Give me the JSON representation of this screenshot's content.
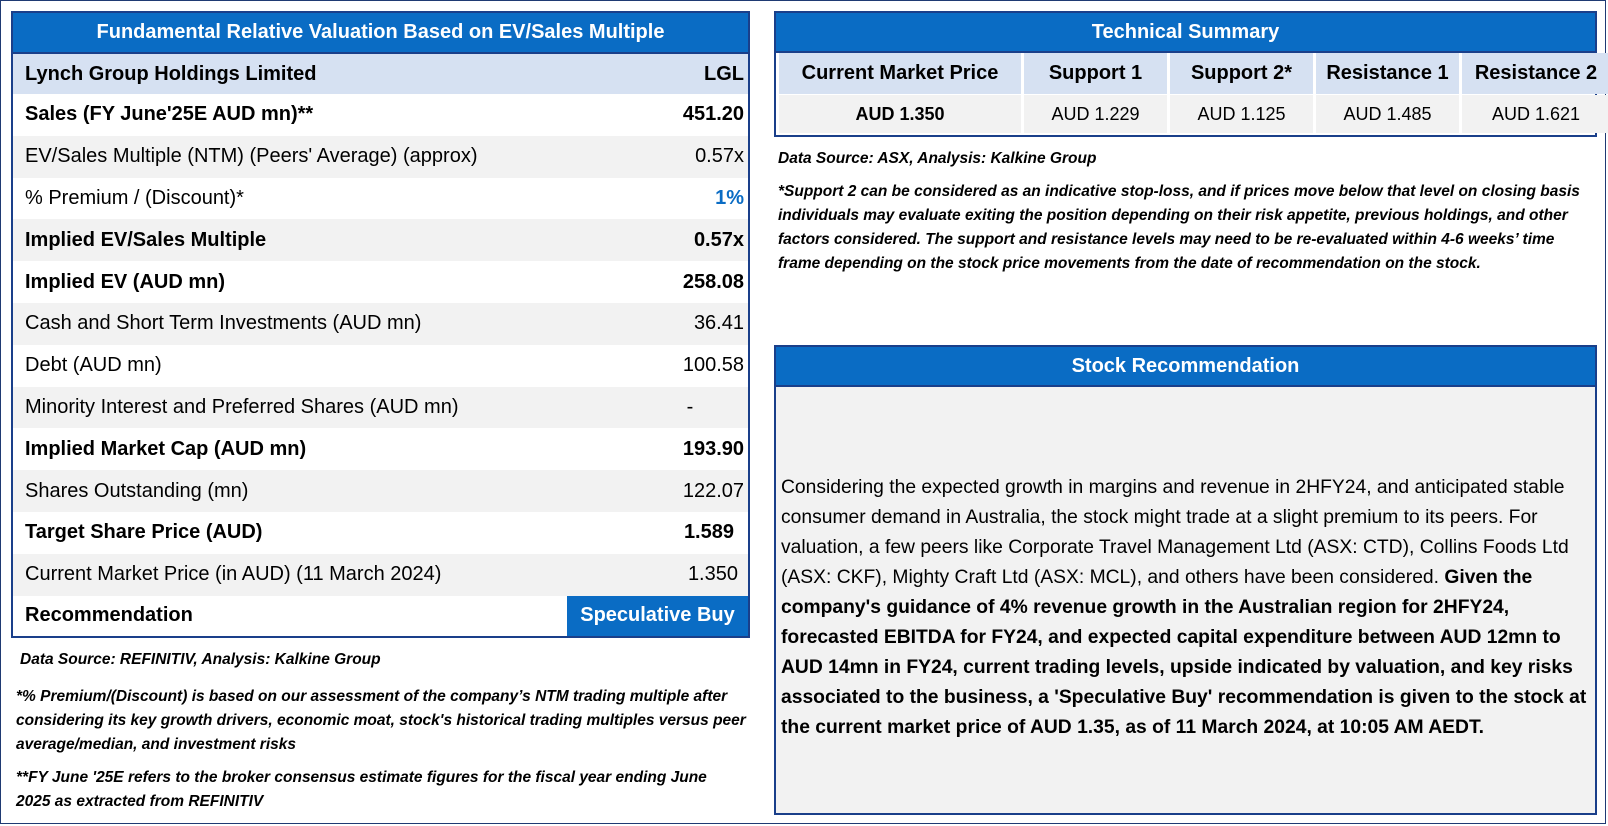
{
  "valuation": {
    "title": "Fundamental Relative Valuation Based on EV/Sales Multiple",
    "company": "Lynch Group Holdings Limited",
    "ticker": "LGL",
    "rows": [
      {
        "label": "Sales (FY June'25E AUD mn)**",
        "value": "451.20"
      },
      {
        "label": "EV/Sales Multiple (NTM)  (Peers' Average) (approx)",
        "value": "0.57x"
      },
      {
        "label": "% Premium / (Discount)*",
        "value": "1%"
      },
      {
        "label": "Implied EV/Sales Multiple",
        "value": "0.57x"
      },
      {
        "label": "Implied EV (AUD mn)",
        "value": "258.08"
      },
      {
        "label": "Cash and Short Term Investments (AUD mn)",
        "value": "36.41"
      },
      {
        "label": "Debt (AUD mn)",
        "value": "100.58"
      },
      {
        "label": "Minority Interest and Preferred Shares (AUD mn)",
        "value": "-"
      },
      {
        "label": "Implied Market Cap (AUD mn)",
        "value": "193.90"
      },
      {
        "label": "Shares Outstanding (mn)",
        "value": "122.07"
      },
      {
        "label": "Target Share Price (AUD)",
        "value": "1.589"
      },
      {
        "label": "Current Market Price (in AUD) (11 March 2024)",
        "value": "1.350"
      },
      {
        "label": "Recommendation",
        "value": "Speculative Buy"
      }
    ],
    "source": "Data Source: REFINITIV, Analysis: Kalkine Group",
    "note1": "*% Premium/(Discount) is based on our assessment of the company’s NTM trading multiple after considering its key growth drivers, economic moat, stock's historical trading multiples versus peer average/median, and investment risks",
    "note2": "**FY June '25E refers to the broker consensus estimate figures for the fiscal year ending June 2025  as extracted from REFINITIV"
  },
  "technical": {
    "title": "Technical Summary",
    "headers": [
      "Current Market Price",
      "Support 1",
      "Support 2*",
      "Resistance 1",
      "Resistance 2"
    ],
    "values": [
      "AUD 1.350",
      "AUD 1.229",
      "AUD 1.125",
      "AUD 1.485",
      "AUD 1.621"
    ],
    "source": "Data Source: ASX, Analysis: Kalkine Group",
    "note": "*Support 2 can be considered as an indicative stop-loss, and if prices move below that level on closing basis individuals may evaluate exiting the position depending on their risk appetite, previous holdings, and other factors considered. The support and resistance levels may need to be re-evaluated within 4-6 weeks’ time frame depending on the stock price movements from the date of recommendation on the stock."
  },
  "recommendation": {
    "title": "Stock Recommendation",
    "text_plain": "Considering the expected growth in margins and revenue in 2HFY24, and anticipated stable consumer demand in Australia, the stock might trade at a slight premium to its peers. For valuation, a few peers like Corporate Travel Management Ltd (ASX: CTD), Collins Foods Ltd (ASX: CKF), Mighty Craft Ltd (ASX: MCL), and others have been considered.",
    "text_bold": "Given the company's guidance of 4% revenue growth in the Australian region for 2HFY24, forecasted EBITDA for FY24, and expected capital expenditure between AUD 12mn to AUD 14mn in FY24, current trading levels, upside indicated by valuation, and key risks associated to the business, a 'Speculative Buy' recommendation is given to the stock at the current market price of AUD 1.35, as of 11 March 2024, at 10:05 AM AEDT."
  },
  "colors": {
    "accent": "#0a6cc4",
    "header_fill": "#d6e1f2",
    "row_fill": "#f2f2f2",
    "border": "#1a3f8a"
  }
}
